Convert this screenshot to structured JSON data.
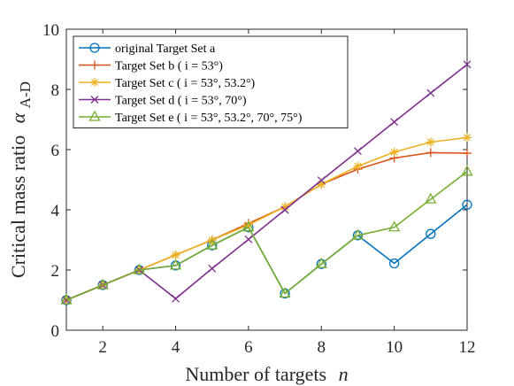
{
  "chart_data": {
    "type": "line",
    "xlabel": "Number of targets",
    "xlabel_var": "n",
    "ylabel": "Critical mass ratio",
    "ylabel_var": "α",
    "ylabel_sub": "A-D",
    "xlim": [
      1,
      12
    ],
    "ylim": [
      0,
      10
    ],
    "xticks": [
      2,
      4,
      6,
      8,
      10,
      12
    ],
    "yticks": [
      0,
      2,
      4,
      6,
      8,
      10
    ],
    "grid": false,
    "legend_position": "top-left",
    "x": [
      1,
      2,
      3,
      4,
      5,
      6,
      7,
      8,
      9,
      10,
      11,
      12
    ],
    "series": [
      {
        "name": "original Target Set a",
        "color": "#0072BD",
        "marker": "circle",
        "values": [
          1.0,
          1.5,
          2.0,
          2.15,
          2.82,
          3.42,
          1.22,
          2.2,
          3.15,
          2.22,
          3.2,
          4.17
        ]
      },
      {
        "name": "Target Set b ( i = 53°)",
        "color": "#D95319",
        "marker": "plus",
        "values": [
          1.0,
          1.5,
          2.0,
          2.5,
          3.0,
          3.55,
          4.1,
          4.85,
          5.35,
          5.72,
          5.9,
          5.88
        ]
      },
      {
        "name": "Target Set c ( i = 53°, 53.2°)",
        "color": "#EDB120",
        "marker": "asterisk",
        "values": [
          1.0,
          1.5,
          2.0,
          2.5,
          3.0,
          3.5,
          4.1,
          4.85,
          5.45,
          5.92,
          6.25,
          6.4
        ]
      },
      {
        "name": "Target Set d ( i = 53°, 70°)",
        "color": "#7E2F8E",
        "marker": "cross",
        "values": [
          1.0,
          1.5,
          2.0,
          1.05,
          2.05,
          3.02,
          4.0,
          4.98,
          5.95,
          6.92,
          7.88,
          8.83
        ]
      },
      {
        "name": "Target Set e ( i = 53°, 53.2°, 70°, 75°)",
        "color": "#77AC30",
        "marker": "triangle",
        "values": [
          1.0,
          1.5,
          2.0,
          2.15,
          2.82,
          3.42,
          1.22,
          2.2,
          3.15,
          3.42,
          4.35,
          5.27
        ]
      }
    ]
  }
}
